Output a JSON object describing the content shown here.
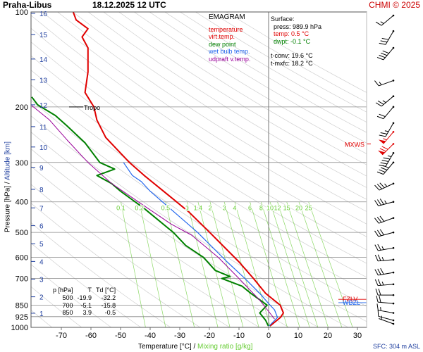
{
  "header": {
    "station": "Praha-Libus",
    "datetime": "18.12.2025 12 UTC",
    "copyright": "CHMI © 2025"
  },
  "legend": {
    "heading": "EMAGRAM",
    "items": [
      {
        "label": "temperature",
        "color": "#e00000"
      },
      {
        "label": "virt.temp.",
        "color": "#e00000"
      },
      {
        "label": "dew point",
        "color": "#008000"
      },
      {
        "label": "wet bulb temp.",
        "color": "#2266ee"
      },
      {
        "label": "udpraft v.temp.",
        "color": "#990099"
      }
    ]
  },
  "surface": {
    "heading": "Surface:",
    "press": "press: 989.9 hPa",
    "temp": "temp: 0.5 °C",
    "dwpt": "dwpt: -0.1 °C",
    "tconv": "t-conv: 19.6 °C",
    "tmxfc": "t-mxfc: 18.2 °C"
  },
  "ptable": {
    "headers": [
      "p [hPa]",
      "T",
      "Td [°C]"
    ],
    "rows": [
      [
        "500",
        "-19.9",
        "-32.2"
      ],
      [
        "700",
        "-5.1",
        "-15.8"
      ],
      [
        "850",
        "3.9",
        "-0.5"
      ]
    ]
  },
  "axes": {
    "xlabel_a": "Temperature [°C]",
    "xlabel_sep": "/",
    "xlabel_b": "Mixing ratio [g/kg]",
    "ylabel_a": "Pressure [hPa]",
    "ylabel_sep": "/",
    "ylabel_b": "Altitude [km]",
    "sfc": "SFC: 304 m ASL"
  },
  "colors": {
    "temperature": "#e00000",
    "dewpoint": "#008000",
    "wetbulb": "#2266ee",
    "updraft": "#990099",
    "mixing": "#66cc33",
    "altitude": "#1d3d9e"
  },
  "chart_data": {
    "type": "line",
    "subtype": "emagram",
    "y_scale": "log",
    "xlim": [
      -80,
      30
    ],
    "ylim": [
      1000,
      100
    ],
    "pressure_ticks": [
      100,
      200,
      300,
      400,
      500,
      600,
      700,
      850,
      925,
      1000
    ],
    "temperature_ticks": [
      -70,
      -60,
      -50,
      -40,
      -30,
      -20,
      -10,
      0,
      10,
      20,
      30
    ],
    "altitude_ticks": [
      {
        "label": "1",
        "p": 902
      },
      {
        "label": "2",
        "p": 800
      },
      {
        "label": "3",
        "p": 703
      },
      {
        "label": "4",
        "p": 618
      },
      {
        "label": "5",
        "p": 543
      },
      {
        "label": "6",
        "p": 476
      },
      {
        "label": "7",
        "p": 418
      },
      {
        "label": "8",
        "p": 365
      },
      {
        "label": "9",
        "p": 311
      },
      {
        "label": "10",
        "p": 268
      },
      {
        "label": "11",
        "p": 231
      },
      {
        "label": "12",
        "p": 197
      },
      {
        "label": "13",
        "p": 164
      },
      {
        "label": "14",
        "p": 141
      },
      {
        "label": "15",
        "p": 118
      },
      {
        "label": "16",
        "p": 101
      }
    ],
    "mixing_ratio_labels": [
      "0.1",
      "0.2",
      "0.5",
      "1",
      "1.4",
      "2",
      "3",
      "4",
      "6",
      "8",
      "10",
      "12",
      "15",
      "20",
      "25"
    ],
    "mixing_ratio_values": [
      0.1,
      0.2,
      0.5,
      1,
      1.4,
      2,
      3,
      4,
      6,
      8,
      10,
      12,
      15,
      20,
      25
    ],
    "mixing_label_p": 400,
    "series": [
      {
        "name": "temperature",
        "points": [
          [
            0.5,
            989.9
          ],
          [
            4,
            930
          ],
          [
            5,
            900
          ],
          [
            3.9,
            850
          ],
          [
            -1,
            780
          ],
          [
            -5.1,
            700
          ],
          [
            -10,
            620
          ],
          [
            -19.9,
            500
          ],
          [
            -27,
            430
          ],
          [
            -34,
            380
          ],
          [
            -42,
            330
          ],
          [
            -47,
            300
          ],
          [
            -55,
            250
          ],
          [
            -58,
            220
          ],
          [
            -59,
            200
          ],
          [
            -62,
            180
          ],
          [
            -61,
            155
          ],
          [
            -61,
            130
          ],
          [
            -63,
            120
          ],
          [
            -61,
            113
          ],
          [
            -65,
            106
          ],
          [
            -66,
            100
          ]
        ]
      },
      {
        "name": "dew point",
        "points": [
          [
            -0.1,
            989.9
          ],
          [
            -1,
            950
          ],
          [
            -3,
            900
          ],
          [
            -0.5,
            850
          ],
          [
            -6,
            780
          ],
          [
            -9,
            740
          ],
          [
            -15.8,
            700
          ],
          [
            -13,
            690
          ],
          [
            -18,
            660
          ],
          [
            -22,
            600
          ],
          [
            -28,
            550
          ],
          [
            -32.2,
            500
          ],
          [
            -42,
            420
          ],
          [
            -50,
            370
          ],
          [
            -53,
            350
          ],
          [
            -58,
            330
          ],
          [
            -52,
            315
          ],
          [
            -57,
            300
          ],
          [
            -62,
            260
          ],
          [
            -68,
            230
          ],
          [
            -72,
            213
          ],
          [
            -78,
            197
          ],
          [
            -80,
            186
          ]
        ]
      },
      {
        "name": "wet bulb temp.",
        "points": [
          [
            0.2,
            989.9
          ],
          [
            3,
            930
          ],
          [
            2,
            880
          ],
          [
            0,
            840
          ],
          [
            -3,
            780
          ],
          [
            -8,
            700
          ],
          [
            -14,
            620
          ],
          [
            -24,
            500
          ],
          [
            -32,
            430
          ],
          [
            -40,
            370
          ],
          [
            -43,
            345
          ],
          [
            -46,
            330
          ],
          [
            -49,
            300
          ]
        ]
      },
      {
        "name": "udpraft v.temp.",
        "points": [
          [
            2,
            940
          ],
          [
            -3,
            820
          ],
          [
            -10,
            700
          ],
          [
            -17,
            600
          ],
          [
            -26,
            510
          ],
          [
            -33,
            470
          ],
          [
            -44,
            400
          ],
          [
            -53,
            350
          ],
          [
            -61,
            300
          ],
          [
            -68,
            255
          ],
          [
            -74,
            220
          ],
          [
            -80,
            198
          ]
        ]
      }
    ],
    "annotations": {
      "tropo": {
        "label": "Tropo",
        "p": 200
      },
      "mxws": {
        "label": "MXWS",
        "p": 262
      },
      "fzl": {
        "label": "FZLV",
        "p": 815
      },
      "wbzl": {
        "label": "WBZL",
        "p": 835
      }
    },
    "wind_barbs": [
      {
        "p": 100,
        "dir": 230,
        "kt": 15
      },
      {
        "p": 115,
        "dir": 210,
        "kt": 30
      },
      {
        "p": 130,
        "dir": 220,
        "kt": 40
      },
      {
        "p": 165,
        "dir": 250,
        "kt": 15
      },
      {
        "p": 185,
        "dir": 230,
        "kt": 25
      },
      {
        "p": 200,
        "dir": 220,
        "kt": 20
      },
      {
        "p": 225,
        "dir": 210,
        "kt": 25
      },
      {
        "p": 240,
        "dir": 220,
        "kt": 55
      },
      {
        "p": 262,
        "dir": 225,
        "kt": 70
      },
      {
        "p": 280,
        "dir": 210,
        "kt": 45
      },
      {
        "p": 300,
        "dir": 220,
        "kt": 40
      },
      {
        "p": 350,
        "dir": 245,
        "kt": 35
      },
      {
        "p": 400,
        "dir": 255,
        "kt": 35
      },
      {
        "p": 450,
        "dir": 250,
        "kt": 30
      },
      {
        "p": 500,
        "dir": 255,
        "kt": 30
      },
      {
        "p": 560,
        "dir": 260,
        "kt": 25
      },
      {
        "p": 610,
        "dir": 265,
        "kt": 25
      },
      {
        "p": 670,
        "dir": 260,
        "kt": 30
      },
      {
        "p": 730,
        "dir": 265,
        "kt": 25
      },
      {
        "p": 790,
        "dir": 270,
        "kt": 20
      },
      {
        "p": 840,
        "dir": 275,
        "kt": 20
      },
      {
        "p": 900,
        "dir": 280,
        "kt": 15
      },
      {
        "p": 950,
        "dir": 285,
        "kt": 10
      },
      {
        "p": 985,
        "dir": 290,
        "kt": 5
      }
    ]
  }
}
